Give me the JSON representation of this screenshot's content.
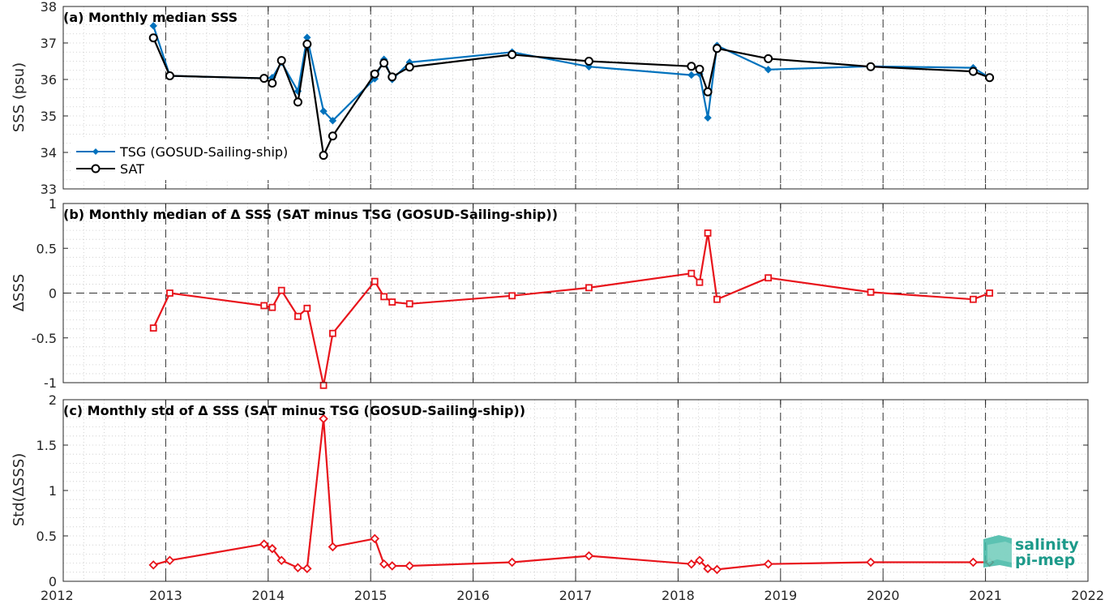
{
  "colors": {
    "tsg": "#0072BD",
    "sat": "#000000",
    "delta": "#E8141B",
    "grid": "#bdbdbd",
    "logo": "#1d9a8a"
  },
  "x_axis": {
    "range": [
      2012,
      2022
    ],
    "ticks": [
      2012,
      2013,
      2014,
      2015,
      2016,
      2017,
      2018,
      2019,
      2020,
      2021,
      2022
    ],
    "tick_labels": [
      "2012",
      "2013",
      "2014",
      "2015",
      "2016",
      "2017",
      "2018",
      "2019",
      "2020",
      "2021",
      "2022"
    ]
  },
  "logo": {
    "line1": "salinity",
    "line2": "pi-mep"
  },
  "chart_data": [
    {
      "type": "line",
      "title": "(a) Monthly median SSS",
      "ylabel": "SSS (psu)",
      "ylim": [
        33,
        38
      ],
      "yticks": [
        33,
        34,
        35,
        36,
        37,
        38
      ],
      "ytick_labels": [
        "33",
        "34",
        "35",
        "36",
        "37",
        "38"
      ],
      "legend": "left, lower",
      "grid": "minor dotted, major dashed vertical at years",
      "series": [
        {
          "name": "TSG (GOSUD-Sailing-ship)",
          "marker": "diamond",
          "color": "#0072BD",
          "x": [
            2012.88,
            2013.04,
            2013.96,
            2014.04,
            2014.13,
            2014.29,
            2014.38,
            2014.54,
            2014.63,
            2015.04,
            2015.13,
            2015.21,
            2015.38,
            2016.38,
            2017.13,
            2018.13,
            2018.21,
            2018.29,
            2018.38,
            2018.88,
            2019.88,
            2020.88,
            2021.04
          ],
          "y": [
            37.47,
            36.1,
            36.03,
            36.05,
            36.47,
            35.68,
            37.15,
            35.13,
            34.87,
            36.02,
            36.55,
            36.0,
            36.47,
            36.75,
            36.35,
            36.12,
            36.15,
            34.95,
            36.93,
            36.27,
            36.36,
            36.32,
            36.05
          ]
        },
        {
          "name": "SAT",
          "marker": "circle",
          "color": "#000000",
          "x": [
            2012.88,
            2013.04,
            2013.96,
            2014.04,
            2014.13,
            2014.29,
            2014.38,
            2014.54,
            2014.63,
            2015.04,
            2015.13,
            2015.21,
            2015.38,
            2016.38,
            2017.13,
            2018.13,
            2018.21,
            2018.29,
            2018.38,
            2018.88,
            2019.88,
            2020.88,
            2021.04
          ],
          "y": [
            37.14,
            36.1,
            36.03,
            35.9,
            36.52,
            35.38,
            36.97,
            33.92,
            34.45,
            36.15,
            36.45,
            36.07,
            36.34,
            36.68,
            36.5,
            36.36,
            36.28,
            35.66,
            36.85,
            36.57,
            36.35,
            36.22,
            36.05
          ]
        }
      ]
    },
    {
      "type": "line",
      "title": "(b) Monthly median of Δ SSS (SAT minus TSG (GOSUD-Sailing-ship))",
      "ylabel": "ΔSSS",
      "ylim": [
        -1,
        1
      ],
      "yticks": [
        -1,
        -0.5,
        0,
        0.5,
        1
      ],
      "ytick_labels": [
        "-1",
        "-0.5",
        "0",
        "0.5",
        "1"
      ],
      "zero_line": true,
      "series": [
        {
          "marker": "square",
          "color": "#E8141B",
          "x": [
            2012.88,
            2013.04,
            2013.96,
            2014.04,
            2014.13,
            2014.29,
            2014.38,
            2014.54,
            2014.63,
            2015.04,
            2015.13,
            2015.21,
            2015.38,
            2016.38,
            2017.13,
            2018.13,
            2018.21,
            2018.29,
            2018.38,
            2018.88,
            2019.88,
            2020.88,
            2021.04
          ],
          "y": [
            -0.39,
            0.0,
            -0.14,
            -0.16,
            0.03,
            -0.26,
            -0.17,
            -1.03,
            -0.45,
            0.13,
            -0.04,
            -0.1,
            -0.12,
            -0.03,
            0.06,
            0.22,
            0.12,
            0.67,
            -0.07,
            0.17,
            0.01,
            -0.07,
            0.0
          ]
        }
      ]
    },
    {
      "type": "line",
      "title": "(c) Monthly std of Δ SSS (SAT minus TSG (GOSUD-Sailing-ship))",
      "ylabel": "Std(ΔSSS)",
      "ylim": [
        0,
        2
      ],
      "yticks": [
        0,
        0.5,
        1,
        1.5,
        2
      ],
      "ytick_labels": [
        "0",
        "0.5",
        "1",
        "1.5",
        "2"
      ],
      "series": [
        {
          "marker": "diamond",
          "color": "#E8141B",
          "x": [
            2012.88,
            2013.04,
            2013.96,
            2014.04,
            2014.13,
            2014.29,
            2014.38,
            2014.54,
            2014.63,
            2015.04,
            2015.13,
            2015.21,
            2015.38,
            2016.38,
            2017.13,
            2018.13,
            2018.21,
            2018.29,
            2018.38,
            2018.88,
            2019.88,
            2020.88,
            2021.04
          ],
          "y": [
            0.18,
            0.23,
            0.41,
            0.36,
            0.23,
            0.15,
            0.14,
            1.79,
            0.38,
            0.47,
            0.19,
            0.17,
            0.17,
            0.21,
            0.28,
            0.19,
            0.23,
            0.14,
            0.13,
            0.19,
            0.21,
            0.21,
            0.21
          ]
        }
      ]
    }
  ]
}
